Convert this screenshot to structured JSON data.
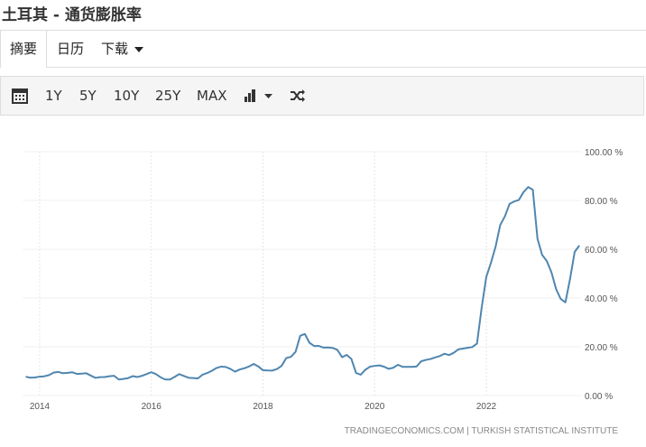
{
  "header": {
    "title": "土耳其 - 通货膨胀率"
  },
  "tabs": [
    "摘要",
    "日历",
    "下载"
  ],
  "ranges": [
    "1Y",
    "5Y",
    "10Y",
    "25Y",
    "MAX"
  ],
  "chart_data": {
    "type": "line",
    "color": "#4f86b0",
    "grid": true,
    "source": "TRADINGECONOMICS.COM | TURKISH STATISTICAL INSTITUTE",
    "x": [
      2013.75,
      2013.833,
      2013.917,
      2014,
      2014.083,
      2014.167,
      2014.25,
      2014.333,
      2014.417,
      2014.5,
      2014.583,
      2014.667,
      2014.75,
      2014.833,
      2014.917,
      2015,
      2015.083,
      2015.167,
      2015.25,
      2015.333,
      2015.417,
      2015.5,
      2015.583,
      2015.667,
      2015.75,
      2015.833,
      2015.917,
      2016,
      2016.083,
      2016.167,
      2016.25,
      2016.333,
      2016.417,
      2016.5,
      2016.583,
      2016.667,
      2016.75,
      2016.833,
      2016.917,
      2017,
      2017.083,
      2017.167,
      2017.25,
      2017.333,
      2017.417,
      2017.5,
      2017.583,
      2017.667,
      2017.75,
      2017.833,
      2017.917,
      2018,
      2018.083,
      2018.167,
      2018.25,
      2018.333,
      2018.417,
      2018.5,
      2018.583,
      2018.667,
      2018.75,
      2018.833,
      2018.917,
      2019,
      2019.083,
      2019.167,
      2019.25,
      2019.333,
      2019.417,
      2019.5,
      2019.583,
      2019.667,
      2019.75,
      2019.833,
      2019.917,
      2020,
      2020.083,
      2020.167,
      2020.25,
      2020.333,
      2020.417,
      2020.5,
      2020.583,
      2020.667,
      2020.75,
      2020.833,
      2020.917,
      2021,
      2021.083,
      2021.167,
      2021.25,
      2021.333,
      2021.417,
      2021.5,
      2021.583,
      2021.667,
      2021.75,
      2021.833,
      2021.917,
      2022,
      2022.083,
      2022.167,
      2022.25,
      2022.333,
      2022.417,
      2022.5,
      2022.583,
      2022.667,
      2022.75,
      2022.833,
      2022.917,
      2023,
      2023.083,
      2023.167,
      2023.25,
      2023.333,
      2023.417,
      2023.5,
      2023.583,
      2023.667
    ],
    "values": [
      7.71,
      7.32,
      7.4,
      7.75,
      7.89,
      8.39,
      9.38,
      9.66,
      9.16,
      9.32,
      9.54,
      8.86,
      8.96,
      9.15,
      8.17,
      7.24,
      7.55,
      7.61,
      7.91,
      8.09,
      6.58,
      6.81,
      7.14,
      7.95,
      7.58,
      8.1,
      8.81,
      9.58,
      8.78,
      7.46,
      6.57,
      6.58,
      7.64,
      8.79,
      8.05,
      7.28,
      7.16,
      7.0,
      8.53,
      9.22,
      10.13,
      11.29,
      11.87,
      11.72,
      10.9,
      9.79,
      10.68,
      11.2,
      11.9,
      12.98,
      11.92,
      10.35,
      10.26,
      10.23,
      10.85,
      12.15,
      15.39,
      15.85,
      17.9,
      24.52,
      25.24,
      21.62,
      20.3,
      20.35,
      19.67,
      19.71,
      19.5,
      18.71,
      15.72,
      16.65,
      15.01,
      9.26,
      8.55,
      10.56,
      11.84,
      12.15,
      12.37,
      11.86,
      10.94,
      11.39,
      12.62,
      11.76,
      11.77,
      11.75,
      11.89,
      14.03,
      14.6,
      14.97,
      15.61,
      16.19,
      17.14,
      16.59,
      17.53,
      18.95,
      19.25,
      19.58,
      19.89,
      21.31,
      36.08,
      48.69,
      54.44,
      61.14,
      69.97,
      73.5,
      78.62,
      79.6,
      80.21,
      83.45,
      85.51,
      84.39,
      64.27,
      57.68,
      55.18,
      50.51,
      43.68,
      39.59,
      38.21,
      47.83,
      58.94,
      61.53
    ],
    "xlim": [
      2013.7,
      2023.7
    ],
    "xticks": [
      2014,
      2016,
      2018,
      2020,
      2022
    ],
    "ylim": [
      0,
      100
    ],
    "yticks": [
      {
        "value": 0,
        "label": "0.00 %"
      },
      {
        "value": 20,
        "label": "20.00 %"
      },
      {
        "value": 40,
        "label": "40.00 %"
      },
      {
        "value": 60,
        "label": "60.00 %"
      },
      {
        "value": 80,
        "label": "80.00 %"
      },
      {
        "value": 100,
        "label": "100.00 %"
      }
    ]
  }
}
